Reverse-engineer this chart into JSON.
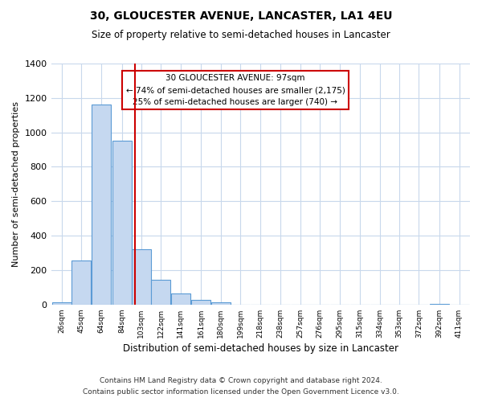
{
  "title": "30, GLOUCESTER AVENUE, LANCASTER, LA1 4EU",
  "subtitle": "Size of property relative to semi-detached houses in Lancaster",
  "xlabel": "Distribution of semi-detached houses by size in Lancaster",
  "ylabel": "Number of semi-detached properties",
  "footnote1": "Contains HM Land Registry data © Crown copyright and database right 2024.",
  "footnote2": "Contains public sector information licensed under the Open Government Licence v3.0.",
  "bar_centers": [
    26,
    45,
    64,
    84,
    103,
    122,
    141,
    161,
    180,
    199,
    218,
    238,
    257,
    276,
    295,
    315,
    334,
    353,
    372,
    392,
    411
  ],
  "bar_heights": [
    15,
    255,
    1160,
    950,
    320,
    145,
    65,
    25,
    15,
    0,
    0,
    0,
    0,
    0,
    0,
    0,
    0,
    0,
    0,
    5,
    0
  ],
  "bin_width": 19,
  "x_tick_labels": [
    "26sqm",
    "45sqm",
    "64sqm",
    "84sqm",
    "103sqm",
    "122sqm",
    "141sqm",
    "161sqm",
    "180sqm",
    "199sqm",
    "218sqm",
    "238sqm",
    "257sqm",
    "276sqm",
    "295sqm",
    "315sqm",
    "334sqm",
    "353sqm",
    "372sqm",
    "392sqm",
    "411sqm"
  ],
  "ylim": [
    0,
    1400
  ],
  "yticks": [
    0,
    200,
    400,
    600,
    800,
    1000,
    1200,
    1400
  ],
  "bar_color": "#c5d8f0",
  "bar_edge_color": "#5b9bd5",
  "property_value": 97,
  "vline_color": "#cc0000",
  "annotation_line1": "30 GLOUCESTER AVENUE: 97sqm",
  "annotation_line2": "← 74% of semi-detached houses are smaller (2,175)",
  "annotation_line3": "25% of semi-detached houses are larger (740) →",
  "annotation_box_color": "#ffffff",
  "annotation_box_edge_color": "#cc0000",
  "background_color": "#ffffff",
  "grid_color": "#c8d8ec"
}
